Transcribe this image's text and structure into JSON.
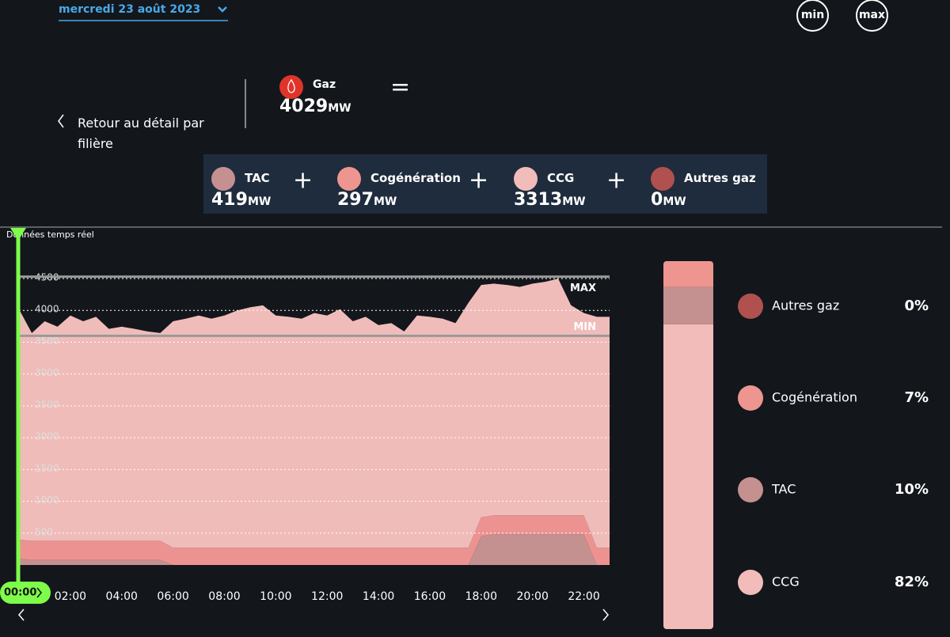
{
  "header": {
    "date": "mercredi 23 août 2023",
    "buttons": [
      "min",
      "max"
    ],
    "back": "Retour au détail par filière",
    "total": {
      "name": "Gaz",
      "value": 4029,
      "unit": "MW"
    }
  },
  "breakdown": [
    {
      "name": "TAC",
      "value": 419,
      "unit": "MW",
      "color": "#c49090"
    },
    {
      "name": "Cogénération",
      "value": 297,
      "unit": "MW",
      "color": "#ee9590"
    },
    {
      "name": "CCG",
      "value": 3313,
      "unit": "MW",
      "color": "#f2bcbb"
    },
    {
      "name": "Autres gaz",
      "value": 0,
      "unit": "MW",
      "color": "#b0514f"
    }
  ],
  "chart_data": {
    "type": "stacked_area",
    "title": "Données temps réel",
    "cursor_label": "00:00",
    "x": [
      0,
      0.5,
      1,
      1.5,
      2,
      2.5,
      3,
      3.5,
      4,
      4.5,
      5,
      5.5,
      6,
      6.5,
      7,
      7.5,
      8,
      8.5,
      9,
      9.5,
      10,
      10.5,
      11,
      11.5,
      12,
      12.5,
      13,
      13.5,
      14,
      14.5,
      15,
      15.5,
      16,
      16.5,
      17,
      17.5,
      18,
      18.5,
      19,
      19.5,
      20,
      20.5,
      21,
      21.5,
      22,
      22.5,
      23
    ],
    "series": [
      {
        "name": "TAC",
        "color": "#c49090",
        "values": [
          100,
          80,
          80,
          80,
          80,
          80,
          80,
          80,
          80,
          80,
          80,
          80,
          0,
          0,
          0,
          0,
          0,
          0,
          0,
          0,
          0,
          0,
          0,
          0,
          0,
          0,
          0,
          0,
          0,
          0,
          0,
          0,
          0,
          0,
          0,
          0,
          450,
          480,
          480,
          480,
          480,
          480,
          480,
          480,
          480,
          0,
          0
        ]
      },
      {
        "name": "Cogénération",
        "color": "#ec9391",
        "values": [
          300,
          300,
          300,
          300,
          300,
          300,
          300,
          300,
          300,
          300,
          300,
          300,
          270,
          270,
          270,
          270,
          270,
          270,
          270,
          270,
          270,
          270,
          270,
          270,
          270,
          270,
          270,
          270,
          270,
          270,
          270,
          270,
          270,
          270,
          270,
          270,
          300,
          300,
          300,
          300,
          300,
          300,
          300,
          300,
          300,
          270,
          270
        ]
      },
      {
        "name": "CCG",
        "color": "#f0bcba",
        "values": [
          3620,
          3265,
          3450,
          3365,
          3540,
          3450,
          3520,
          3330,
          3365,
          3330,
          3290,
          3265,
          3560,
          3600,
          3650,
          3600,
          3650,
          3730,
          3780,
          3810,
          3650,
          3630,
          3600,
          3690,
          3650,
          3750,
          3560,
          3630,
          3500,
          3530,
          3400,
          3650,
          3630,
          3600,
          3530,
          3850,
          3650,
          3640,
          3620,
          3590,
          3640,
          3670,
          3720,
          3300,
          3180,
          3630,
          3630
        ]
      }
    ],
    "xlim": [
      0,
      23
    ],
    "xticks": [
      {
        "value": 2,
        "label": "02:00"
      },
      {
        "value": 4,
        "label": "04:00"
      },
      {
        "value": 6,
        "label": "06:00"
      },
      {
        "value": 8,
        "label": "08:00"
      },
      {
        "value": 10,
        "label": "10:00"
      },
      {
        "value": 12,
        "label": "12:00"
      },
      {
        "value": 14,
        "label": "14:00"
      },
      {
        "value": 16,
        "label": "16:00"
      },
      {
        "value": 18,
        "label": "18:00"
      },
      {
        "value": 20,
        "label": "20:00"
      },
      {
        "value": 22,
        "label": "22:00"
      }
    ],
    "ylim": [
      0,
      4500
    ],
    "yticks": [
      500,
      1000,
      1500,
      2000,
      2500,
      3000,
      3500,
      4000,
      4500
    ],
    "grid": true,
    "reference_lines": [
      {
        "label": "MAX",
        "value": 4530
      },
      {
        "label": "MIN",
        "value": 3600
      }
    ]
  },
  "share": {
    "names": [
      "Autres gaz",
      "Cogénération",
      "TAC",
      "CCG"
    ],
    "values": [
      0,
      7,
      10,
      82
    ],
    "value_labels": [
      "0%",
      "7%",
      "10%",
      "82%"
    ],
    "colors": [
      "#b0514f",
      "#ee9590",
      "#c49090",
      "#f2bcbb"
    ]
  }
}
